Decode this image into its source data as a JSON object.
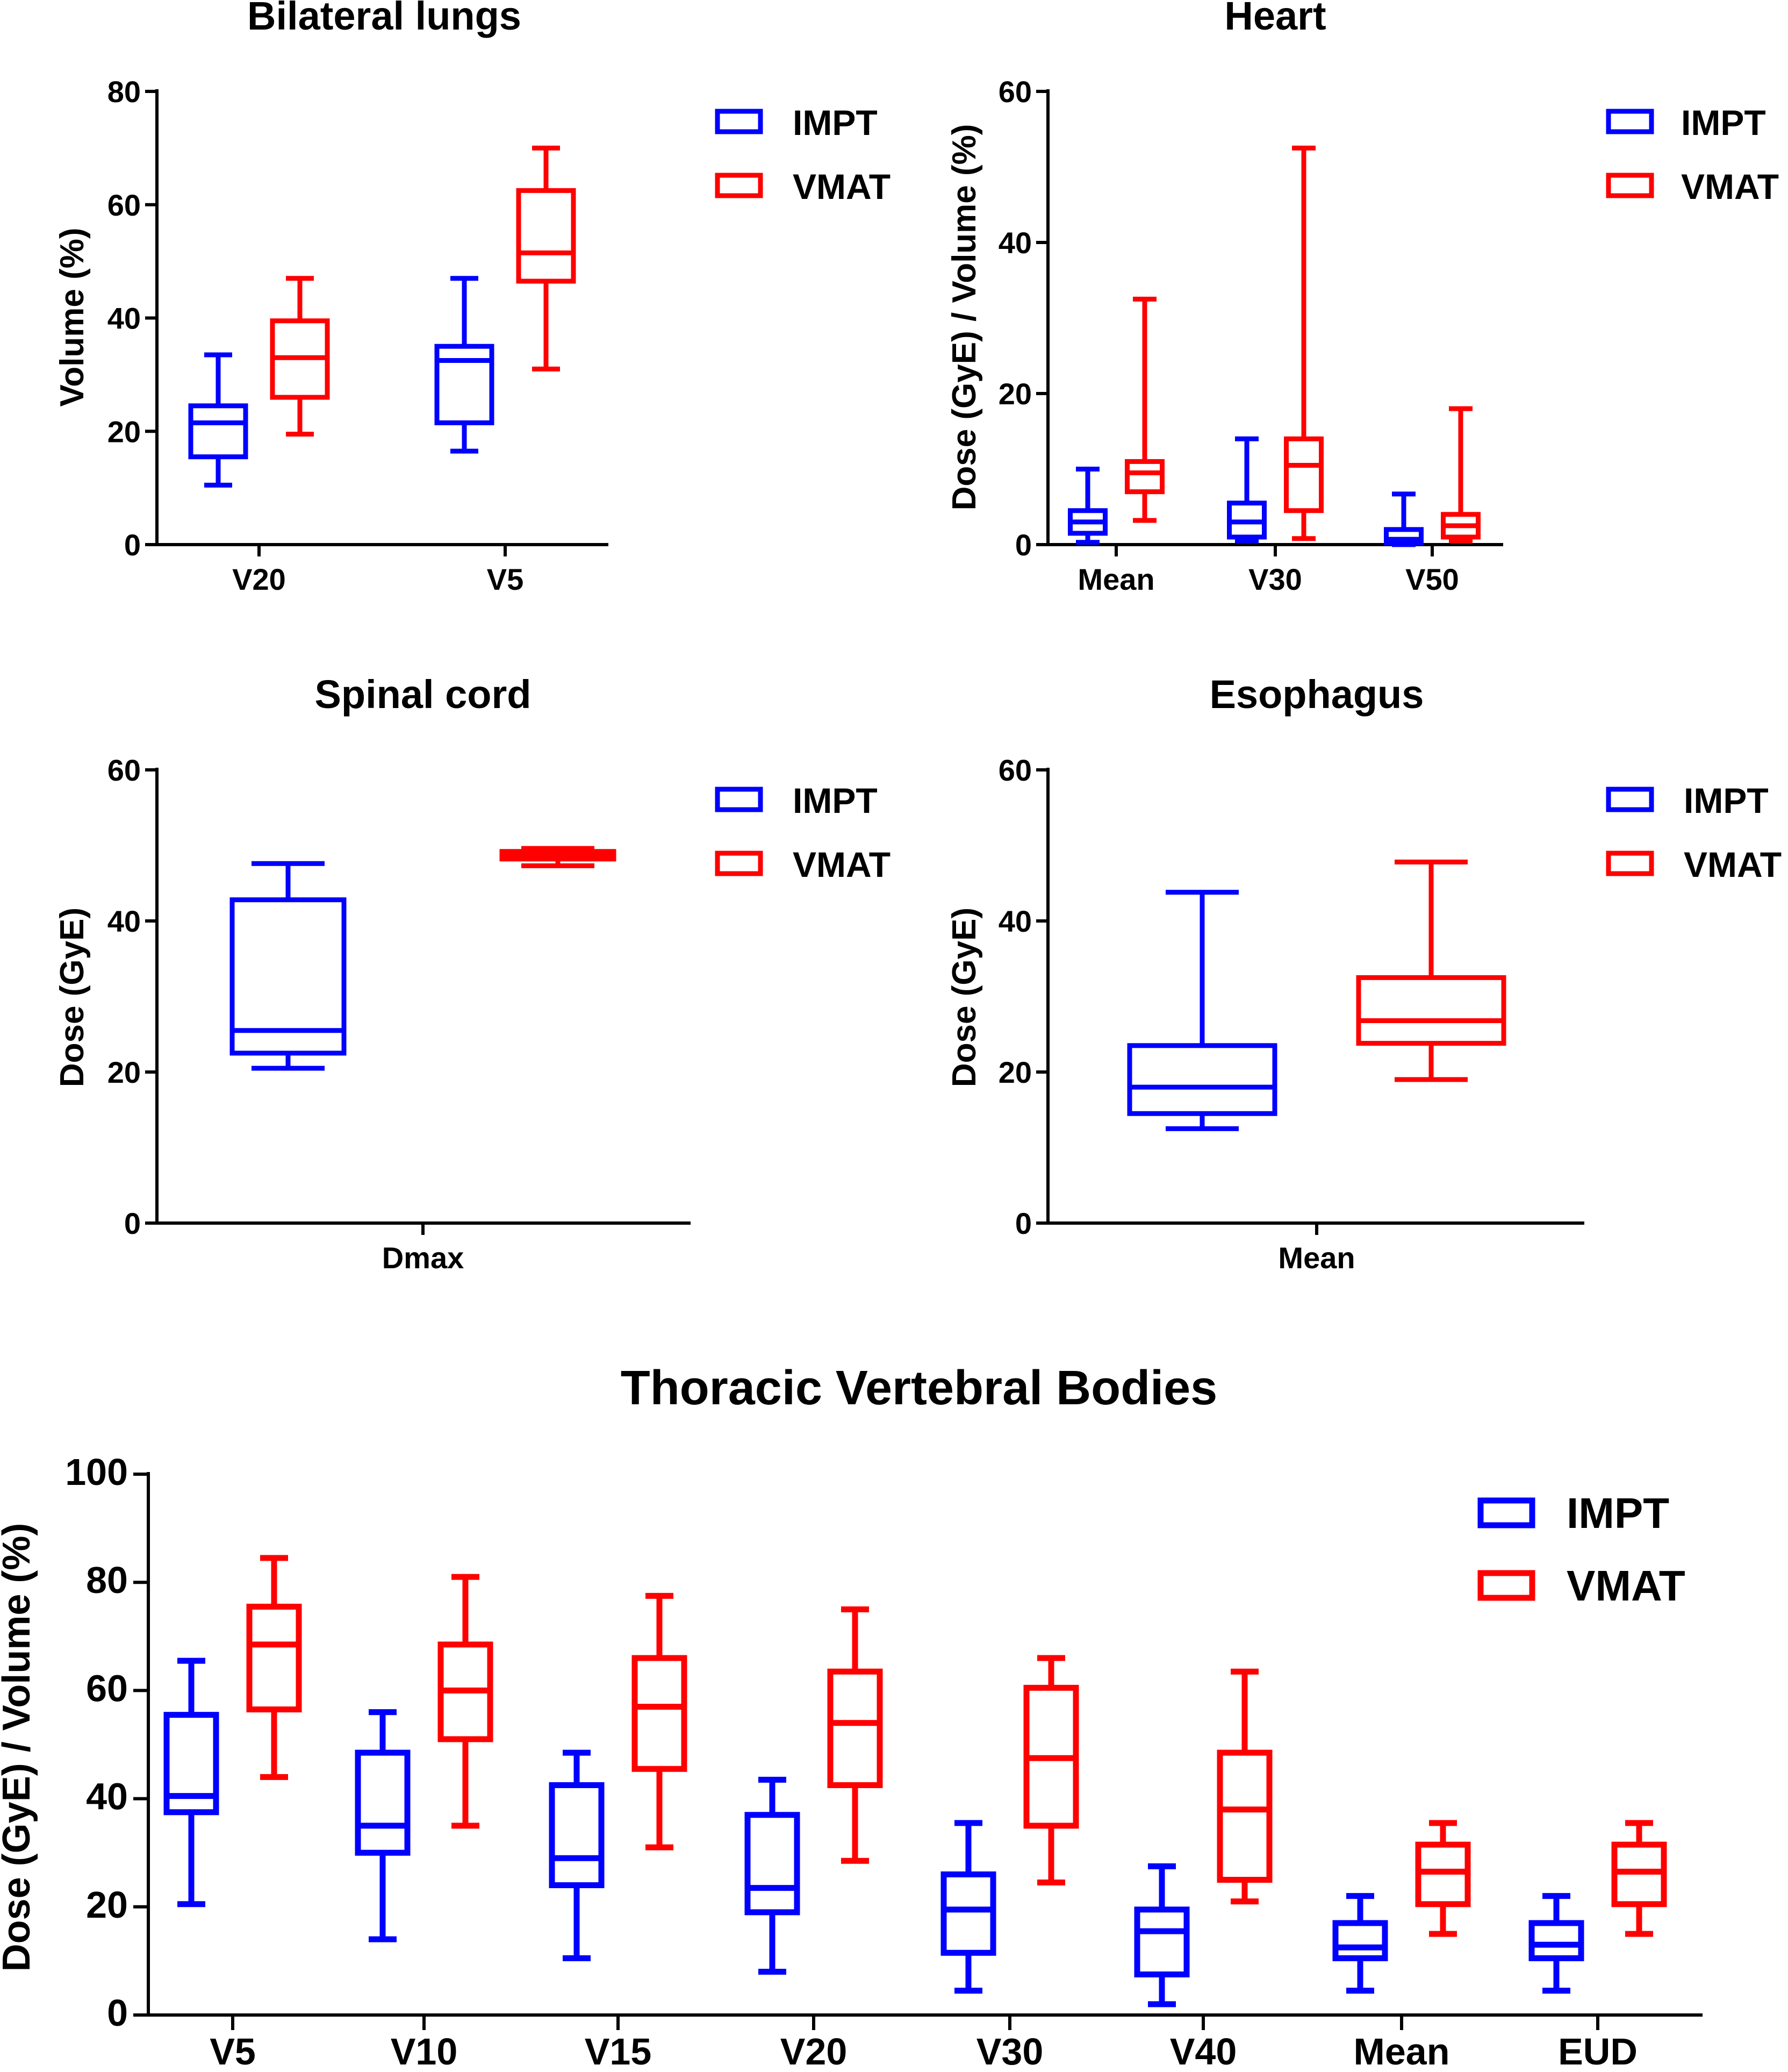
{
  "colors": {
    "IMPT": "#0000ff",
    "VMAT": "#ff0000",
    "axis": "#000000"
  },
  "chart_data": [
    {
      "id": "lungs",
      "type": "box",
      "title": "Bilateral lungs",
      "ylabel": "Volume (%)",
      "ylim": [
        0,
        80
      ],
      "yticks": [
        0,
        20,
        40,
        60,
        80
      ],
      "categories": [
        "V20",
        "V5"
      ],
      "legend": [
        "IMPT",
        "VMAT"
      ],
      "legend_position": "top-right",
      "series": [
        {
          "name": "IMPT",
          "boxes": [
            {
              "min": 10.5,
              "q1": 15.5,
              "median": 21.5,
              "q3": 24.5,
              "max": 33.5
            },
            {
              "min": 16.5,
              "q1": 21.5,
              "median": 32.5,
              "q3": 35,
              "max": 47
            }
          ]
        },
        {
          "name": "VMAT",
          "boxes": [
            {
              "min": 19.5,
              "q1": 26,
              "median": 33,
              "q3": 39.5,
              "max": 47
            },
            {
              "min": 31,
              "q1": 46.5,
              "median": 51.5,
              "q3": 62.5,
              "max": 70
            }
          ]
        }
      ]
    },
    {
      "id": "heart",
      "type": "box",
      "title": "Heart",
      "ylabel": "Dose (GyE) / Volume (%)",
      "ylim": [
        0,
        60
      ],
      "yticks": [
        0,
        20,
        40,
        60
      ],
      "categories": [
        "Mean",
        "V30",
        "V50"
      ],
      "legend": [
        "IMPT",
        "VMAT"
      ],
      "legend_position": "top-right",
      "series": [
        {
          "name": "IMPT",
          "boxes": [
            {
              "min": 0.3,
              "q1": 1.5,
              "median": 3,
              "q3": 4.5,
              "max": 10
            },
            {
              "min": 0.5,
              "q1": 1,
              "median": 3,
              "q3": 5.5,
              "max": 14
            },
            {
              "min": 0,
              "q1": 0.2,
              "median": 0.7,
              "q3": 2,
              "max": 6.7
            }
          ]
        },
        {
          "name": "VMAT",
          "boxes": [
            {
              "min": 3.2,
              "q1": 7,
              "median": 9.5,
              "q3": 11,
              "max": 32.5
            },
            {
              "min": 0.8,
              "q1": 4.5,
              "median": 10.5,
              "q3": 14,
              "max": 52.5
            },
            {
              "min": 0.5,
              "q1": 1,
              "median": 2.5,
              "q3": 4,
              "max": 18
            }
          ]
        }
      ]
    },
    {
      "id": "spinal",
      "type": "box",
      "title": "Spinal cord",
      "ylabel": "Dose (GyE)",
      "ylim": [
        0,
        60
      ],
      "yticks": [
        0,
        20,
        40,
        60
      ],
      "categories": [
        "Dmax"
      ],
      "legend": [
        "IMPT",
        "VMAT"
      ],
      "legend_position": "top-right",
      "series": [
        {
          "name": "IMPT",
          "boxes": [
            {
              "min": 20.5,
              "q1": 22.5,
              "median": 25.5,
              "q3": 42.8,
              "max": 47.6
            }
          ]
        },
        {
          "name": "VMAT",
          "boxes": [
            {
              "min": 47.3,
              "q1": 48.2,
              "median": 48.8,
              "q3": 49.2,
              "max": 49.6
            }
          ]
        }
      ]
    },
    {
      "id": "esophagus",
      "type": "box",
      "title": "Esophagus",
      "ylabel": "Dose (GyE)",
      "ylim": [
        0,
        60
      ],
      "yticks": [
        0,
        20,
        40,
        60
      ],
      "categories": [
        "Mean"
      ],
      "legend": [
        "IMPT",
        "VMAT"
      ],
      "legend_position": "top-right",
      "series": [
        {
          "name": "IMPT",
          "boxes": [
            {
              "min": 12.5,
              "q1": 14.5,
              "median": 18,
              "q3": 23.5,
              "max": 43.8
            }
          ]
        },
        {
          "name": "VMAT",
          "boxes": [
            {
              "min": 19,
              "q1": 23.8,
              "median": 26.8,
              "q3": 32.5,
              "max": 47.8
            }
          ]
        }
      ]
    },
    {
      "id": "vertebral",
      "type": "box",
      "title": "Thoracic Vertebral Bodies",
      "ylabel": "Dose (GyE) / Volume (%)",
      "ylim": [
        0,
        100
      ],
      "yticks": [
        0,
        20,
        40,
        60,
        80,
        100
      ],
      "categories": [
        "V5",
        "V10",
        "V15",
        "V20",
        "V30",
        "V40",
        "Mean",
        "EUD"
      ],
      "legend": [
        "IMPT",
        "VMAT"
      ],
      "legend_position": "top-right",
      "series": [
        {
          "name": "IMPT",
          "boxes": [
            {
              "min": 20.5,
              "q1": 37.5,
              "median": 40.5,
              "q3": 55.5,
              "max": 65.5
            },
            {
              "min": 14,
              "q1": 30,
              "median": 35,
              "q3": 48.5,
              "max": 56
            },
            {
              "min": 10.5,
              "q1": 24,
              "median": 29,
              "q3": 42.5,
              "max": 48.5
            },
            {
              "min": 8,
              "q1": 19,
              "median": 23.5,
              "q3": 37,
              "max": 43.5
            },
            {
              "min": 4.5,
              "q1": 11.5,
              "median": 19.5,
              "q3": 26,
              "max": 35.5
            },
            {
              "min": 2,
              "q1": 7.5,
              "median": 15.5,
              "q3": 19.5,
              "max": 27.5
            },
            {
              "min": 4.5,
              "q1": 10.5,
              "median": 12.5,
              "q3": 17,
              "max": 22
            },
            {
              "min": 4.5,
              "q1": 10.5,
              "median": 13,
              "q3": 17,
              "max": 22
            }
          ]
        },
        {
          "name": "VMAT",
          "boxes": [
            {
              "min": 44,
              "q1": 56.5,
              "median": 68.5,
              "q3": 75.5,
              "max": 84.5
            },
            {
              "min": 35,
              "q1": 51,
              "median": 60,
              "q3": 68.5,
              "max": 81
            },
            {
              "min": 31,
              "q1": 45.5,
              "median": 57,
              "q3": 66,
              "max": 77.5
            },
            {
              "min": 28.5,
              "q1": 42.5,
              "median": 54,
              "q3": 63.5,
              "max": 75
            },
            {
              "min": 24.5,
              "q1": 35,
              "median": 47.5,
              "q3": 60.5,
              "max": 66
            },
            {
              "min": 21,
              "q1": 25,
              "median": 38,
              "q3": 48.5,
              "max": 63.5
            },
            {
              "min": 15,
              "q1": 20.5,
              "median": 26.5,
              "q3": 31.5,
              "max": 35.5
            },
            {
              "min": 15,
              "q1": 20.5,
              "median": 26.5,
              "q3": 31.5,
              "max": 35.5
            }
          ]
        }
      ]
    }
  ]
}
